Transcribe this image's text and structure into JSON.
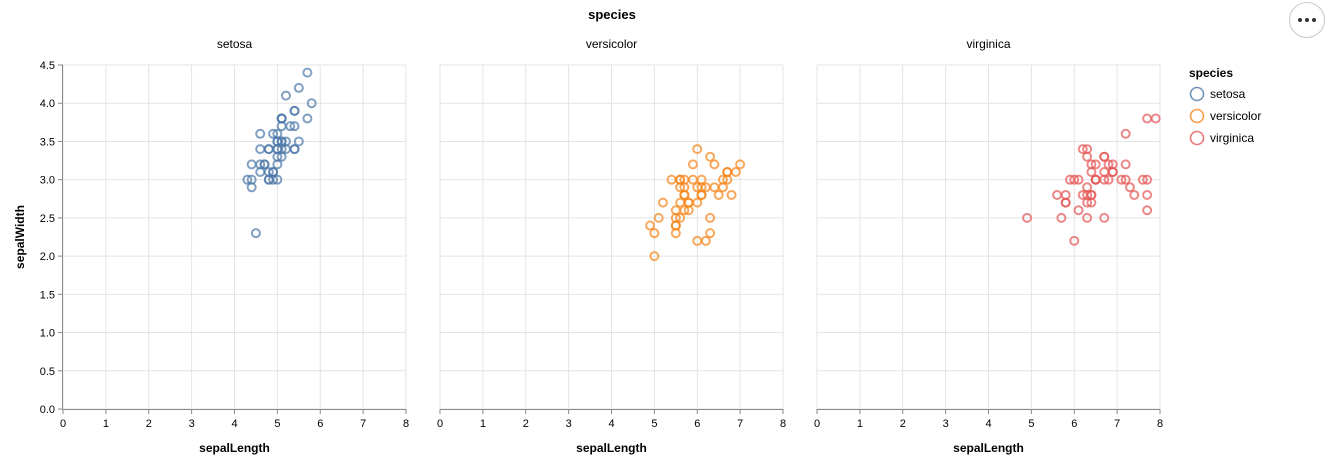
{
  "chart_data": {
    "type": "scatter",
    "facet_title": "species",
    "xlabel": "sepalLength",
    "ylabel": "sepalWidth",
    "xlim": [
      0,
      8
    ],
    "ylim": [
      0,
      4.5
    ],
    "x_ticks": [
      "0",
      "1",
      "2",
      "3",
      "4",
      "5",
      "6",
      "7",
      "8"
    ],
    "y_ticks": [
      "0.0",
      "0.5",
      "1.0",
      "1.5",
      "2.0",
      "2.5",
      "3.0",
      "3.5",
      "4.0",
      "4.5"
    ],
    "grid": true,
    "legend": {
      "title": "species",
      "position": "right",
      "entries": [
        "setosa",
        "versicolor",
        "virginica"
      ]
    },
    "series": [
      {
        "name": "setosa",
        "color": "#4c78a8",
        "points": [
          [
            5.1,
            3.5
          ],
          [
            4.9,
            3.0
          ],
          [
            4.7,
            3.2
          ],
          [
            4.6,
            3.1
          ],
          [
            5.0,
            3.6
          ],
          [
            5.4,
            3.9
          ],
          [
            4.6,
            3.4
          ],
          [
            5.0,
            3.4
          ],
          [
            4.4,
            2.9
          ],
          [
            4.9,
            3.1
          ],
          [
            5.4,
            3.7
          ],
          [
            4.8,
            3.4
          ],
          [
            4.8,
            3.0
          ],
          [
            4.3,
            3.0
          ],
          [
            5.8,
            4.0
          ],
          [
            5.7,
            4.4
          ],
          [
            5.4,
            3.9
          ],
          [
            5.1,
            3.5
          ],
          [
            5.7,
            3.8
          ],
          [
            5.1,
            3.8
          ],
          [
            5.4,
            3.4
          ],
          [
            5.1,
            3.7
          ],
          [
            4.6,
            3.6
          ],
          [
            5.1,
            3.3
          ],
          [
            4.8,
            3.4
          ],
          [
            5.0,
            3.0
          ],
          [
            5.0,
            3.4
          ],
          [
            5.2,
            3.5
          ],
          [
            5.2,
            3.4
          ],
          [
            4.7,
            3.2
          ],
          [
            4.8,
            3.1
          ],
          [
            5.4,
            3.4
          ],
          [
            5.2,
            4.1
          ],
          [
            5.5,
            4.2
          ],
          [
            4.9,
            3.1
          ],
          [
            5.0,
            3.2
          ],
          [
            5.5,
            3.5
          ],
          [
            4.9,
            3.6
          ],
          [
            4.4,
            3.0
          ],
          [
            5.1,
            3.4
          ],
          [
            5.0,
            3.5
          ],
          [
            4.5,
            2.3
          ],
          [
            4.4,
            3.2
          ],
          [
            5.0,
            3.5
          ],
          [
            5.1,
            3.8
          ],
          [
            4.8,
            3.0
          ],
          [
            5.1,
            3.8
          ],
          [
            4.6,
            3.2
          ],
          [
            5.3,
            3.7
          ],
          [
            5.0,
            3.3
          ]
        ]
      },
      {
        "name": "versicolor",
        "color": "#f58518",
        "points": [
          [
            7.0,
            3.2
          ],
          [
            6.4,
            3.2
          ],
          [
            6.9,
            3.1
          ],
          [
            5.5,
            2.3
          ],
          [
            6.5,
            2.8
          ],
          [
            5.7,
            2.8
          ],
          [
            6.3,
            3.3
          ],
          [
            4.9,
            2.4
          ],
          [
            6.6,
            2.9
          ],
          [
            5.2,
            2.7
          ],
          [
            5.0,
            2.0
          ],
          [
            5.9,
            3.0
          ],
          [
            6.0,
            2.2
          ],
          [
            6.1,
            2.9
          ],
          [
            5.6,
            2.9
          ],
          [
            6.7,
            3.1
          ],
          [
            5.6,
            3.0
          ],
          [
            5.8,
            2.7
          ],
          [
            6.2,
            2.2
          ],
          [
            5.6,
            2.5
          ],
          [
            5.9,
            3.2
          ],
          [
            6.1,
            2.8
          ],
          [
            6.3,
            2.5
          ],
          [
            6.1,
            2.8
          ],
          [
            6.4,
            2.9
          ],
          [
            6.6,
            3.0
          ],
          [
            6.8,
            2.8
          ],
          [
            6.7,
            3.0
          ],
          [
            6.0,
            2.9
          ],
          [
            5.7,
            2.6
          ],
          [
            5.5,
            2.4
          ],
          [
            5.5,
            2.4
          ],
          [
            5.8,
            2.7
          ],
          [
            6.0,
            2.7
          ],
          [
            5.4,
            3.0
          ],
          [
            6.0,
            3.4
          ],
          [
            6.7,
            3.1
          ],
          [
            6.3,
            2.3
          ],
          [
            5.6,
            3.0
          ],
          [
            5.5,
            2.5
          ],
          [
            5.5,
            2.6
          ],
          [
            6.1,
            3.0
          ],
          [
            5.8,
            2.6
          ],
          [
            5.0,
            2.3
          ],
          [
            5.6,
            2.7
          ],
          [
            5.7,
            3.0
          ],
          [
            5.7,
            2.9
          ],
          [
            6.2,
            2.9
          ],
          [
            5.1,
            2.5
          ],
          [
            5.7,
            2.8
          ]
        ]
      },
      {
        "name": "virginica",
        "color": "#e45756",
        "points": [
          [
            6.3,
            3.3
          ],
          [
            5.8,
            2.7
          ],
          [
            7.1,
            3.0
          ],
          [
            6.3,
            2.9
          ],
          [
            6.5,
            3.0
          ],
          [
            7.6,
            3.0
          ],
          [
            4.9,
            2.5
          ],
          [
            7.3,
            2.9
          ],
          [
            6.7,
            2.5
          ],
          [
            7.2,
            3.6
          ],
          [
            6.5,
            3.2
          ],
          [
            6.4,
            2.7
          ],
          [
            6.8,
            3.0
          ],
          [
            5.7,
            2.5
          ],
          [
            5.8,
            2.8
          ],
          [
            6.4,
            3.2
          ],
          [
            6.5,
            3.0
          ],
          [
            7.7,
            3.8
          ],
          [
            7.7,
            2.6
          ],
          [
            6.0,
            2.2
          ],
          [
            6.9,
            3.2
          ],
          [
            5.6,
            2.8
          ],
          [
            7.7,
            2.8
          ],
          [
            6.3,
            2.7
          ],
          [
            6.7,
            3.3
          ],
          [
            7.2,
            3.2
          ],
          [
            6.2,
            2.8
          ],
          [
            6.1,
            3.0
          ],
          [
            6.4,
            2.8
          ],
          [
            7.2,
            3.0
          ],
          [
            7.4,
            2.8
          ],
          [
            7.9,
            3.8
          ],
          [
            6.4,
            2.8
          ],
          [
            6.3,
            2.8
          ],
          [
            6.1,
            2.6
          ],
          [
            7.7,
            3.0
          ],
          [
            6.3,
            3.4
          ],
          [
            6.4,
            3.1
          ],
          [
            6.0,
            3.0
          ],
          [
            6.9,
            3.1
          ],
          [
            6.7,
            3.1
          ],
          [
            6.9,
            3.1
          ],
          [
            5.8,
            2.7
          ],
          [
            6.8,
            3.2
          ],
          [
            6.7,
            3.3
          ],
          [
            6.7,
            3.0
          ],
          [
            6.3,
            2.5
          ],
          [
            6.5,
            3.0
          ],
          [
            6.2,
            3.4
          ],
          [
            5.9,
            3.0
          ]
        ]
      }
    ]
  },
  "menu": {
    "icon": "more-dots-icon"
  }
}
